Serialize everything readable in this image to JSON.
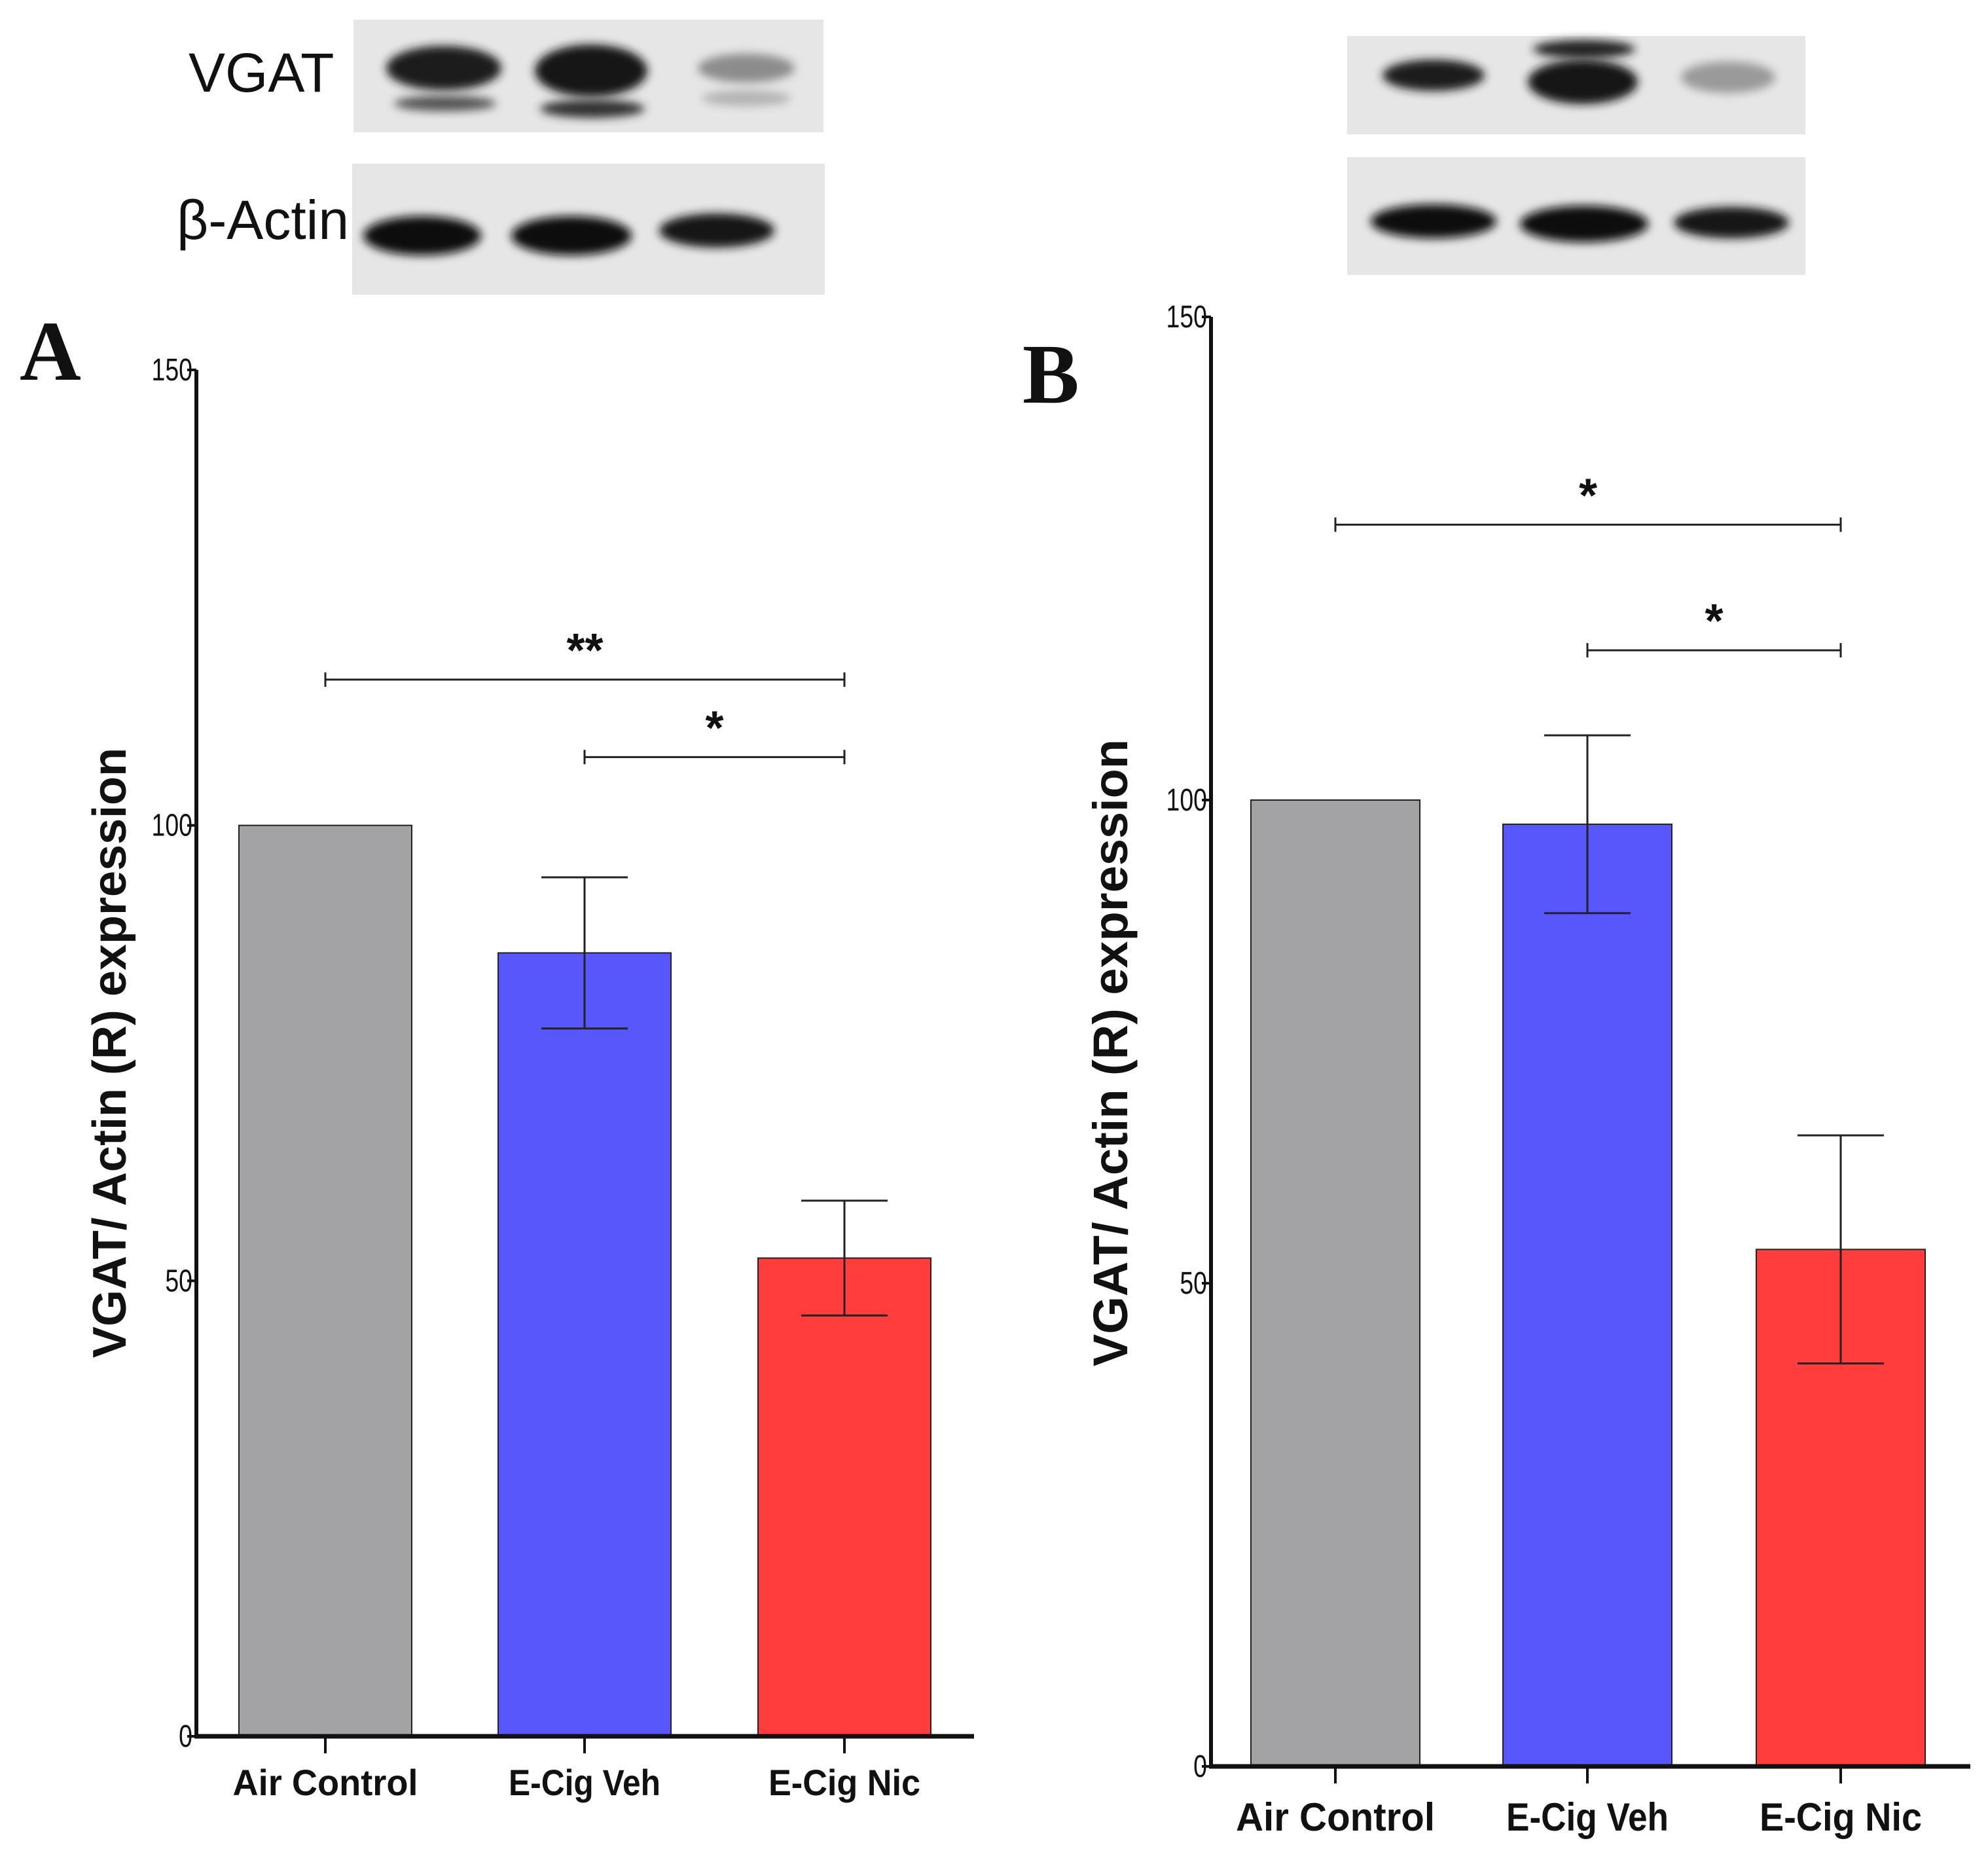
{
  "blot": {
    "vgat_label": "VGAT",
    "actin_label": "β-Actin"
  },
  "chart_data": [
    {
      "panel": "A",
      "type": "bar",
      "title": "",
      "xlabel": "",
      "ylabel": "VGAT/ Actin (R) expression",
      "ylim": [
        0,
        150
      ],
      "yticks": [
        0,
        50,
        100,
        150
      ],
      "grid": false,
      "categories": [
        "Air Control",
        "E-Cig Veh",
        "E-Cig Nic"
      ],
      "values": [
        100,
        86,
        52.5
      ],
      "errors": [
        0,
        8.3,
        6.3
      ],
      "colors": [
        "#a3a3a6",
        "#5757fc",
        "#ff3d3d"
      ],
      "significance": [
        {
          "from": 0,
          "to": 2,
          "y": 116,
          "label": "**"
        },
        {
          "from": 1,
          "to": 2,
          "y": 107.5,
          "label": "*"
        }
      ]
    },
    {
      "panel": "B",
      "type": "bar",
      "title": "",
      "xlabel": "",
      "ylabel": "VGAT/ Actin (R) expression",
      "ylim": [
        0,
        150
      ],
      "yticks": [
        0,
        50,
        100,
        150
      ],
      "grid": false,
      "categories": [
        "Air Control",
        "E-Cig Veh",
        "E-Cig Nic"
      ],
      "values": [
        100,
        97.5,
        53.5
      ],
      "errors": [
        0,
        9.2,
        11.8
      ],
      "colors": [
        "#a3a3a6",
        "#5757fc",
        "#ff3d3d"
      ],
      "significance": [
        {
          "from": 0,
          "to": 2,
          "y": 128.5,
          "label": "*"
        },
        {
          "from": 1,
          "to": 2,
          "y": 115.5,
          "label": "*"
        }
      ]
    }
  ]
}
